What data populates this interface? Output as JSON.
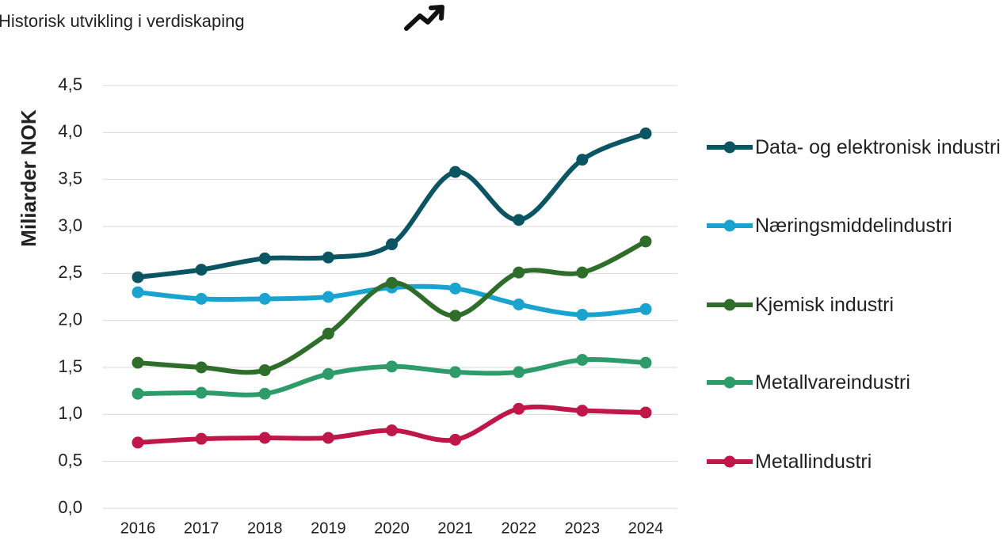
{
  "chart_data": {
    "type": "line",
    "title": "Historisk utvikling i verdiskaping",
    "y_label": "Miliarder NOK",
    "categories": [
      "2016",
      "2017",
      "2018",
      "2019",
      "2020",
      "2021",
      "2022",
      "2023",
      "2024"
    ],
    "series": [
      {
        "name": "Data- og elektronisk industri",
        "color": "#0b5563",
        "values": [
          2.46,
          2.54,
          2.66,
          2.67,
          2.81,
          3.58,
          3.07,
          3.71,
          3.99
        ]
      },
      {
        "name": "Næringsmiddelindustri",
        "color": "#1aa3cf",
        "values": [
          2.3,
          2.23,
          2.23,
          2.25,
          2.35,
          2.34,
          2.17,
          2.06,
          2.12
        ]
      },
      {
        "name": "Kjemisk industri",
        "color": "#2e6e2a",
        "values": [
          1.55,
          1.5,
          1.47,
          1.86,
          2.4,
          2.05,
          2.51,
          2.51,
          2.84
        ]
      },
      {
        "name": "Metallvareindustri",
        "color": "#2e9b6a",
        "values": [
          1.22,
          1.23,
          1.22,
          1.43,
          1.51,
          1.45,
          1.45,
          1.58,
          1.55
        ]
      },
      {
        "name": "Metallindustri",
        "color": "#c0174a",
        "values": [
          0.7,
          0.74,
          0.75,
          0.75,
          0.83,
          0.73,
          1.06,
          1.04,
          1.02
        ]
      }
    ],
    "ylim": [
      0,
      4.5
    ],
    "yticks": [
      {
        "value": 0,
        "label": "0,0"
      },
      {
        "value": 0.5,
        "label": "0,5"
      },
      {
        "value": 1,
        "label": "1,0"
      },
      {
        "value": 1.5,
        "label": "1,5"
      },
      {
        "value": 2,
        "label": "2,0"
      },
      {
        "value": 2.5,
        "label": "2,5"
      },
      {
        "value": 3,
        "label": "3,0"
      },
      {
        "value": 3.5,
        "label": "3,5"
      },
      {
        "value": 4,
        "label": "4,0"
      },
      {
        "value": 4.5,
        "label": "4,5"
      }
    ],
    "grid": true,
    "smooth": true,
    "legend": "right"
  }
}
